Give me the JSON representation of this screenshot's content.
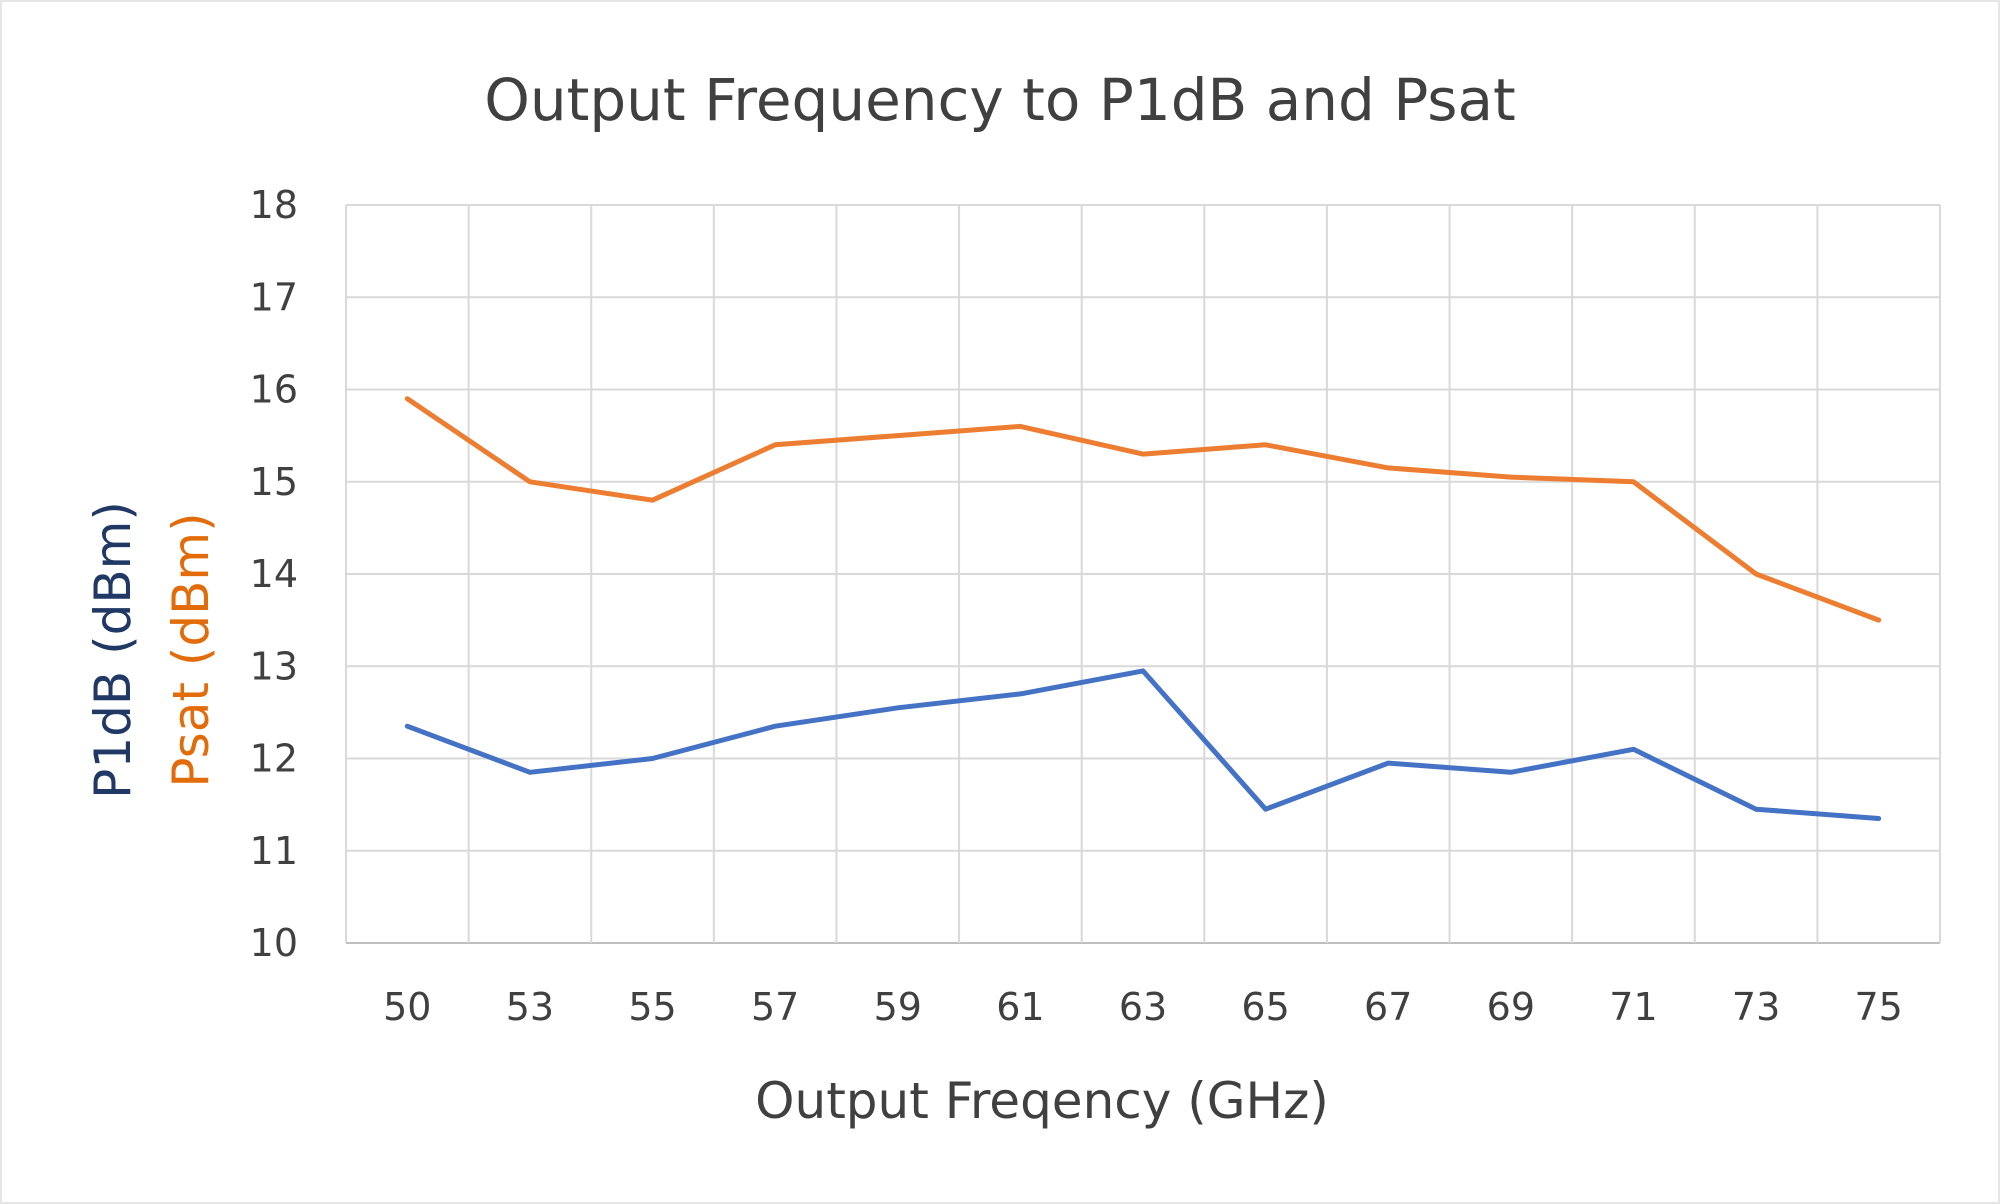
{
  "chart_data": {
    "type": "line",
    "title": "Output Frequency to P1dB and Psat",
    "xlabel": "Output Freqency (GHz)",
    "ylabel_lines": [
      {
        "text": "P1dB (dBm)",
        "color": "#1f3864"
      },
      {
        "text": "Psat (dBm)",
        "color": "#e36c0a"
      }
    ],
    "categories": [
      "50",
      "53",
      "55",
      "57",
      "59",
      "61",
      "63",
      "65",
      "67",
      "69",
      "71",
      "73",
      "75"
    ],
    "ylim": [
      10,
      18
    ],
    "yticks": [
      "10",
      "11",
      "12",
      "13",
      "14",
      "15",
      "16",
      "17",
      "18"
    ],
    "grid": true,
    "series": [
      {
        "color": "#ed7d31",
        "values": [
          15.9,
          15.0,
          14.8,
          15.4,
          15.5,
          15.6,
          15.3,
          15.4,
          15.15,
          15.05,
          15.0,
          14.0,
          13.5
        ]
      },
      {
        "color": "#4472c4",
        "values": [
          12.35,
          11.85,
          12.0,
          12.35,
          12.55,
          12.7,
          12.95,
          11.45,
          11.95,
          11.85,
          12.1,
          11.45,
          11.35
        ]
      }
    ]
  }
}
